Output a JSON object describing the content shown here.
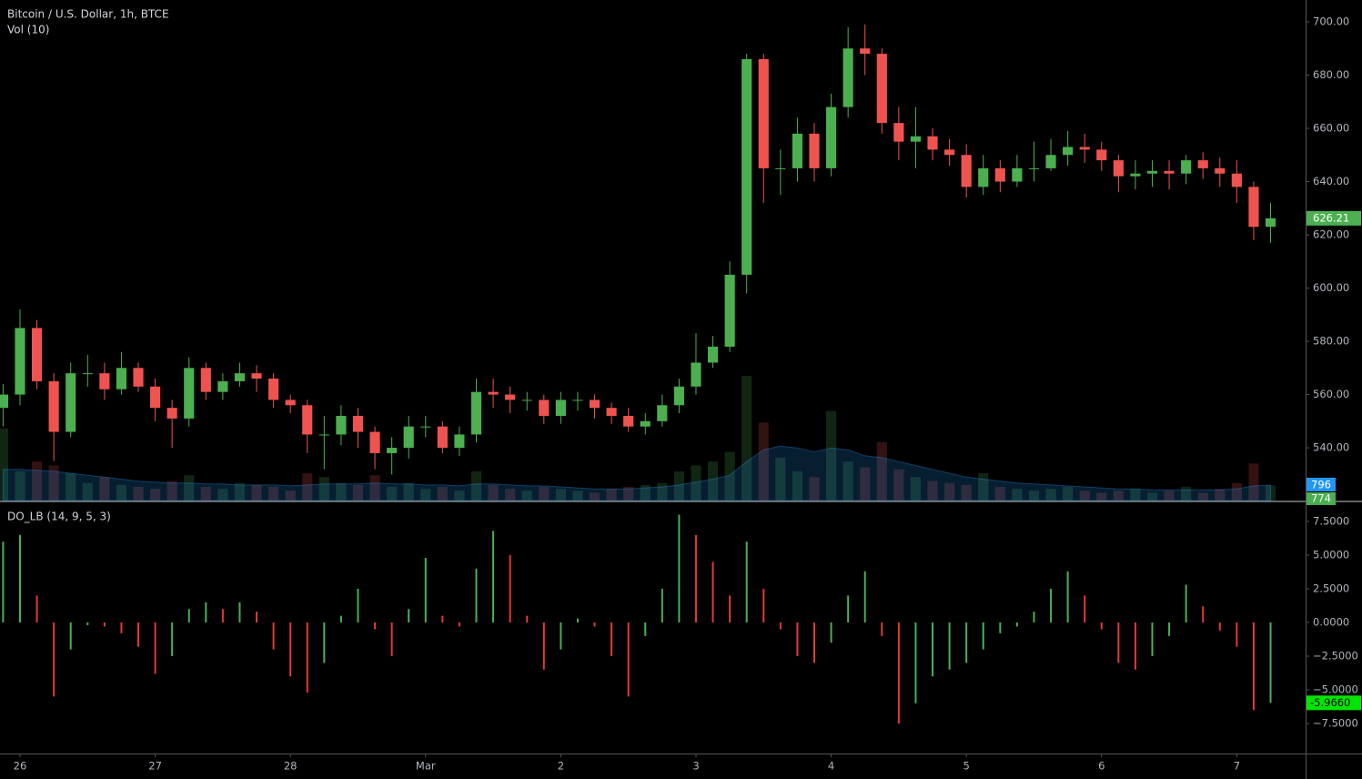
{
  "chart_data": [
    {
      "type": "candlestick",
      "title": "Bitcoin / U.S. Dollar, 1h, BTCE",
      "x": [
        -0.125,
        0,
        0.125,
        0.25,
        0.375,
        0.5,
        0.625,
        0.75,
        0.875,
        1,
        1.125,
        1.25,
        1.375,
        1.5,
        1.625,
        1.75,
        1.875,
        2,
        2.125,
        2.25,
        2.375,
        2.5,
        2.625,
        2.75,
        2.875,
        3,
        3.125,
        3.25,
        3.375,
        3.5,
        3.625,
        3.75,
        3.875,
        4,
        4.125,
        4.25,
        4.375,
        4.5,
        4.625,
        4.75,
        4.875,
        5,
        5.125,
        5.25,
        5.375,
        5.5,
        5.625,
        5.75,
        5.875,
        6,
        6.125,
        6.25,
        6.375,
        6.5,
        6.625,
        6.75,
        6.875,
        7,
        7.125,
        7.25,
        7.375,
        7.5,
        7.625,
        7.75,
        7.875,
        8,
        8.125,
        8.25,
        8.375,
        8.5,
        8.625,
        8.75,
        8.875,
        9,
        9.125,
        9.25
      ],
      "open": [
        555,
        560,
        585,
        565,
        546,
        568,
        568,
        562,
        570,
        563,
        555,
        551,
        570,
        561,
        565,
        568,
        566,
        558,
        556,
        545,
        545,
        552,
        546,
        538,
        540,
        548,
        548,
        540,
        545,
        561,
        560,
        558,
        558,
        552,
        558,
        558,
        555,
        552,
        548,
        550,
        556,
        563,
        572,
        578,
        605,
        686,
        645,
        645,
        658,
        645,
        668,
        690,
        688,
        662,
        655,
        657,
        652,
        650,
        638,
        645,
        640,
        645,
        645,
        650,
        653,
        652,
        648,
        642,
        643,
        644,
        643,
        648,
        645,
        643,
        638,
        623
      ],
      "high": [
        564,
        592,
        588,
        568,
        572,
        575,
        572,
        576,
        572,
        566,
        558,
        574,
        572,
        568,
        572,
        571,
        568,
        560,
        558,
        552,
        556,
        555,
        548,
        544,
        552,
        552,
        550,
        548,
        566,
        566,
        563,
        561,
        560,
        561,
        561,
        560,
        557,
        555,
        553,
        560,
        566,
        583,
        582,
        610,
        688,
        688,
        652,
        664,
        662,
        673,
        698,
        699,
        690,
        668,
        668,
        660,
        656,
        654,
        650,
        648,
        650,
        655,
        656,
        659,
        658,
        655,
        650,
        648,
        648,
        648,
        650,
        651,
        649,
        648,
        640,
        632
      ],
      "low": [
        548,
        556,
        562,
        535,
        544,
        563,
        558,
        560,
        561,
        550,
        540,
        548,
        558,
        558,
        563,
        561,
        555,
        553,
        538,
        532,
        541,
        540,
        532,
        530,
        536,
        544,
        538,
        537,
        542,
        555,
        553,
        554,
        549,
        549,
        554,
        551,
        549,
        546,
        545,
        548,
        553,
        560,
        570,
        576,
        598,
        632,
        635,
        640,
        640,
        642,
        664,
        680,
        658,
        648,
        645,
        648,
        646,
        634,
        635,
        636,
        638,
        640,
        644,
        646,
        647,
        644,
        636,
        637,
        638,
        637,
        639,
        641,
        638,
        632,
        618,
        617
      ],
      "close": [
        560,
        585,
        565,
        546,
        568,
        568,
        562,
        570,
        563,
        555,
        551,
        570,
        561,
        565,
        568,
        566,
        558,
        556,
        545,
        545,
        552,
        546,
        538,
        540,
        548,
        548,
        540,
        545,
        561,
        560,
        558,
        558,
        552,
        558,
        558,
        555,
        552,
        548,
        550,
        556,
        563,
        572,
        578,
        605,
        686,
        645,
        645,
        658,
        645,
        668,
        690,
        688,
        662,
        655,
        657,
        652,
        650,
        638,
        645,
        640,
        645,
        645,
        650,
        653,
        652,
        648,
        642,
        643,
        644,
        643,
        648,
        645,
        643,
        638,
        623,
        626.21
      ],
      "xlim": [
        -0.148,
        9.509
      ],
      "ylim": [
        520.2,
        708.2
      ],
      "yticks": [
        {
          "value": 540,
          "label": "540.00"
        },
        {
          "value": 560,
          "label": "560.00"
        },
        {
          "value": 580,
          "label": "580.00"
        },
        {
          "value": 600,
          "label": "600.00"
        },
        {
          "value": 620,
          "label": "620.00"
        },
        {
          "value": 640,
          "label": "640.00"
        },
        {
          "value": 660,
          "label": "660.00"
        },
        {
          "value": 680,
          "label": "680.00"
        },
        {
          "value": 700,
          "label": "700.00"
        }
      ],
      "up_color": "#4caf50",
      "down_color": "#ef5350",
      "volume": {
        "title": "Vol (10)",
        "values": [
          3700,
          1500,
          2000,
          1800,
          1400,
          900,
          1200,
          800,
          700,
          600,
          1000,
          1300,
          700,
          600,
          900,
          800,
          700,
          500,
          1400,
          1200,
          900,
          800,
          1300,
          700,
          900,
          600,
          700,
          500,
          1500,
          800,
          600,
          500,
          700,
          600,
          500,
          400,
          600,
          700,
          800,
          900,
          1500,
          1800,
          2000,
          2500,
          6400,
          4000,
          2200,
          1500,
          1200,
          4600,
          2000,
          1700,
          3000,
          1600,
          1200,
          1000,
          900,
          800,
          1400,
          700,
          600,
          500,
          600,
          700,
          500,
          400,
          500,
          600,
          400,
          500,
          700,
          400,
          600,
          900,
          1900,
          774
        ],
        "ma": [
          1600,
          1600,
          1550,
          1500,
          1400,
          1300,
          1200,
          1100,
          1000,
          950,
          900,
          900,
          850,
          850,
          800,
          800,
          800,
          750,
          800,
          850,
          850,
          850,
          900,
          850,
          850,
          800,
          800,
          750,
          850,
          850,
          800,
          750,
          750,
          700,
          650,
          600,
          600,
          600,
          650,
          700,
          800,
          950,
          1100,
          1300,
          2000,
          2600,
          2800,
          2700,
          2500,
          2700,
          2600,
          2300,
          2200,
          2000,
          1800,
          1600,
          1400,
          1200,
          1100,
          1000,
          900,
          850,
          800,
          750,
          700,
          650,
          600,
          600,
          550,
          550,
          550,
          550,
          550,
          600,
          750,
          796
        ],
        "ylim": [
          0,
          25700
        ],
        "ma_color": "#2196f3"
      }
    },
    {
      "type": "bar",
      "title": "DO_LB (14, 9, 5, 3)",
      "x": [
        -0.125,
        0,
        0.125,
        0.25,
        0.375,
        0.5,
        0.625,
        0.75,
        0.875,
        1,
        1.125,
        1.25,
        1.375,
        1.5,
        1.625,
        1.75,
        1.875,
        2,
        2.125,
        2.25,
        2.375,
        2.5,
        2.625,
        2.75,
        2.875,
        3,
        3.125,
        3.25,
        3.375,
        3.5,
        3.625,
        3.75,
        3.875,
        4,
        4.125,
        4.25,
        4.375,
        4.5,
        4.625,
        4.75,
        4.875,
        5,
        5.125,
        5.25,
        5.375,
        5.5,
        5.625,
        5.75,
        5.875,
        6,
        6.125,
        6.25,
        6.375,
        6.5,
        6.625,
        6.75,
        6.875,
        7,
        7.125,
        7.25,
        7.375,
        7.5,
        7.625,
        7.75,
        7.875,
        8,
        8.125,
        8.25,
        8.375,
        8.5,
        8.625,
        8.75,
        8.875,
        9,
        9.125,
        9.25
      ],
      "values": [
        6,
        6.5,
        2,
        -5.5,
        -2,
        -0.2,
        -0.3,
        -0.8,
        -1.8,
        -3.8,
        -2.5,
        1,
        1.5,
        1,
        1.5,
        0.8,
        -2,
        -4,
        -5.2,
        -3,
        0.5,
        2.5,
        -0.5,
        -2.5,
        1,
        4.8,
        0.5,
        -0.3,
        4,
        6.8,
        5,
        0.5,
        -3.5,
        -2,
        0.3,
        -0.3,
        -2.5,
        -5.5,
        -1,
        2.5,
        8,
        6.5,
        4.5,
        2,
        6,
        2.5,
        -0.5,
        -2.5,
        -3,
        -1.5,
        2,
        3.8,
        -1,
        -7.5,
        -6,
        -4,
        -3.5,
        -3,
        -2,
        -0.8,
        -0.3,
        0.8,
        2.5,
        3.8,
        2,
        -0.5,
        -3,
        -3.5,
        -2.5,
        -1,
        2.8,
        1.2,
        -0.6,
        -1.8,
        -6.5,
        -5.966
      ],
      "value_labels": [
        null,
        null,
        null,
        null,
        null,
        null,
        null,
        null,
        null,
        null,
        null,
        null,
        null,
        null,
        null,
        null,
        null,
        null,
        null,
        null,
        null,
        null,
        null,
        null,
        null,
        null,
        null,
        null,
        null,
        null,
        null,
        null,
        null,
        null,
        null,
        null,
        null,
        null,
        null,
        null,
        null,
        null,
        null,
        null,
        null,
        null,
        null,
        null,
        null,
        null,
        null,
        null,
        null,
        null,
        null,
        null,
        null,
        null,
        null,
        null,
        null,
        null,
        null,
        null,
        null,
        null,
        null,
        null,
        null,
        null,
        null,
        null,
        null,
        null,
        null,
        "-5.9660"
      ],
      "xlim": [
        -0.148,
        9.509
      ],
      "ylim": [
        -9.73,
        8.92
      ],
      "xticks": [
        {
          "value": 0,
          "label": "26"
        },
        {
          "value": 1,
          "label": "27"
        },
        {
          "value": 2,
          "label": "28"
        },
        {
          "value": 3,
          "label": "Mar"
        },
        {
          "value": 4,
          "label": "2"
        },
        {
          "value": 5,
          "label": "3"
        },
        {
          "value": 6,
          "label": "4"
        },
        {
          "value": 7,
          "label": "5"
        },
        {
          "value": 8,
          "label": "6"
        },
        {
          "value": 9,
          "label": "7"
        }
      ],
      "yticks": [
        {
          "value": -7.5,
          "label": "−7.5000"
        },
        {
          "value": -5,
          "label": "−5.0000"
        },
        {
          "value": -2.5,
          "label": "−2.5000"
        },
        {
          "value": 0,
          "label": "0.0000"
        },
        {
          "value": 2.5,
          "label": "2.5000"
        },
        {
          "value": 5,
          "label": "5.0000"
        },
        {
          "value": 7.5,
          "label": "7.5000"
        }
      ],
      "up_color": "#4caf50",
      "down_color": "#e53935"
    }
  ]
}
